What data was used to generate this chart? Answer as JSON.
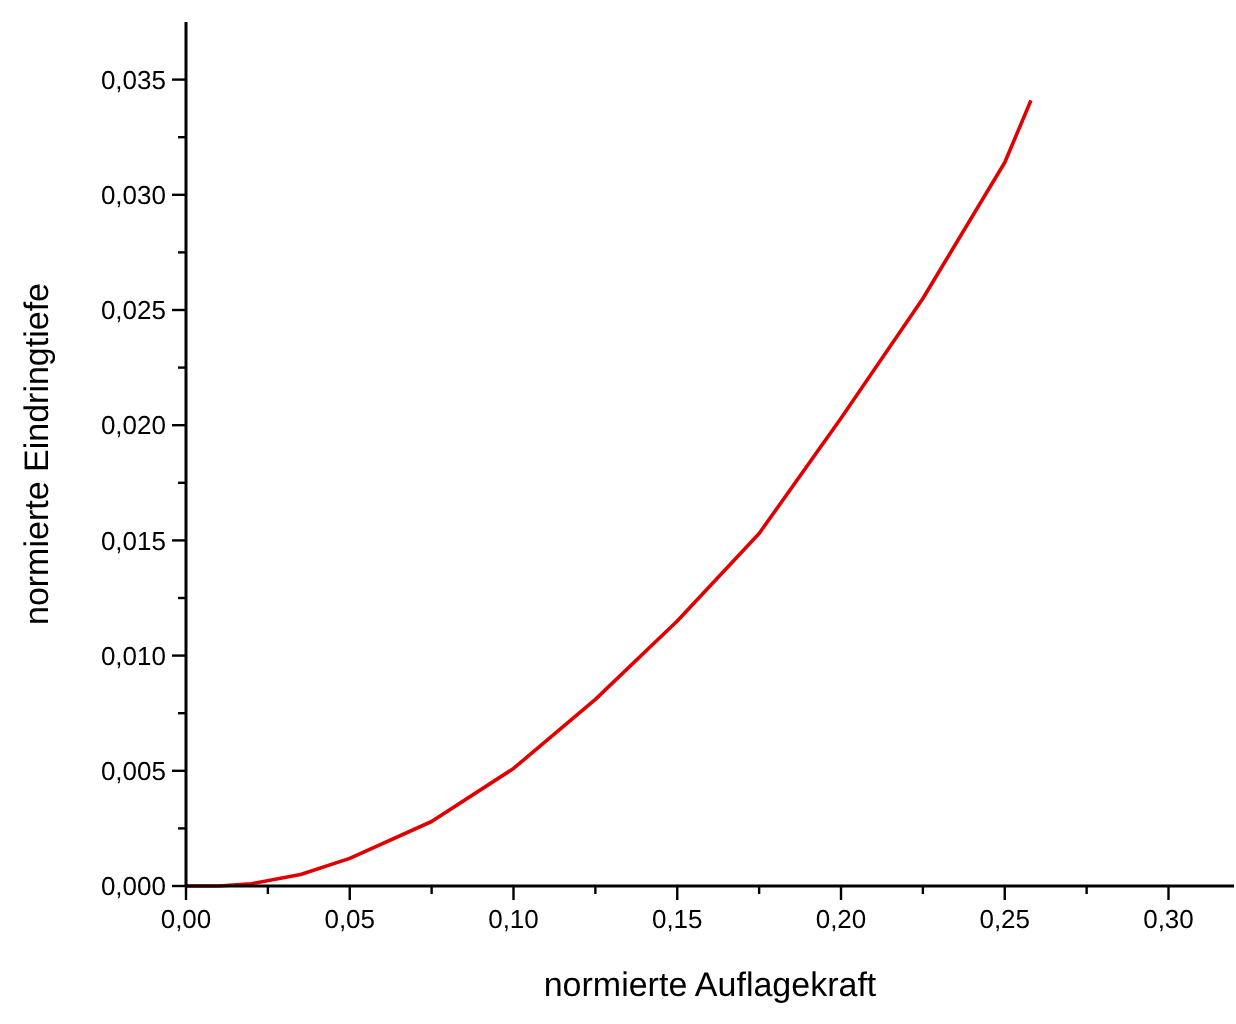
{
  "chart_data": {
    "type": "line",
    "xlabel": "normierte Auflagekraft",
    "ylabel": "normierte Eindringtiefe",
    "xlim": [
      0,
      0.32
    ],
    "ylim": [
      0,
      0.0375
    ],
    "xticks": [
      {
        "value": 0,
        "label": "0,00"
      },
      {
        "value": 0.025,
        "label": null
      },
      {
        "value": 0.05,
        "label": "0,05"
      },
      {
        "value": 0.075,
        "label": null
      },
      {
        "value": 0.1,
        "label": "0,10"
      },
      {
        "value": 0.125,
        "label": null
      },
      {
        "value": 0.15,
        "label": "0,15"
      },
      {
        "value": 0.175,
        "label": null
      },
      {
        "value": 0.2,
        "label": "0,20"
      },
      {
        "value": 0.225,
        "label": null
      },
      {
        "value": 0.25,
        "label": "0,25"
      },
      {
        "value": 0.275,
        "label": null
      },
      {
        "value": 0.3,
        "label": "0,30"
      }
    ],
    "yticks": [
      {
        "value": 0,
        "label": "0,000"
      },
      {
        "value": 0.0025,
        "label": null
      },
      {
        "value": 0.005,
        "label": "0,005"
      },
      {
        "value": 0.0075,
        "label": null
      },
      {
        "value": 0.01,
        "label": "0,010"
      },
      {
        "value": 0.0125,
        "label": null
      },
      {
        "value": 0.015,
        "label": "0,015"
      },
      {
        "value": 0.0175,
        "label": null
      },
      {
        "value": 0.02,
        "label": "0,020"
      },
      {
        "value": 0.0225,
        "label": null
      },
      {
        "value": 0.025,
        "label": "0,025"
      },
      {
        "value": 0.0275,
        "label": null
      },
      {
        "value": 0.03,
        "label": "0,030"
      },
      {
        "value": 0.0325,
        "label": null
      },
      {
        "value": 0.035,
        "label": "0,035"
      }
    ],
    "grid": false,
    "marker": "none",
    "line_style": "solid",
    "series": [
      {
        "color": "#e00000",
        "x": [
          0,
          0.01,
          0.02,
          0.035,
          0.05,
          0.075,
          0.1,
          0.125,
          0.15,
          0.175,
          0.2,
          0.225,
          0.25,
          0.258
        ],
        "values": [
          0,
          0,
          0.0001,
          0.0005,
          0.0012,
          0.0028,
          0.0051,
          0.0081,
          0.0115,
          0.0153,
          0.0203,
          0.0255,
          0.0314,
          0.0341
        ]
      }
    ]
  }
}
